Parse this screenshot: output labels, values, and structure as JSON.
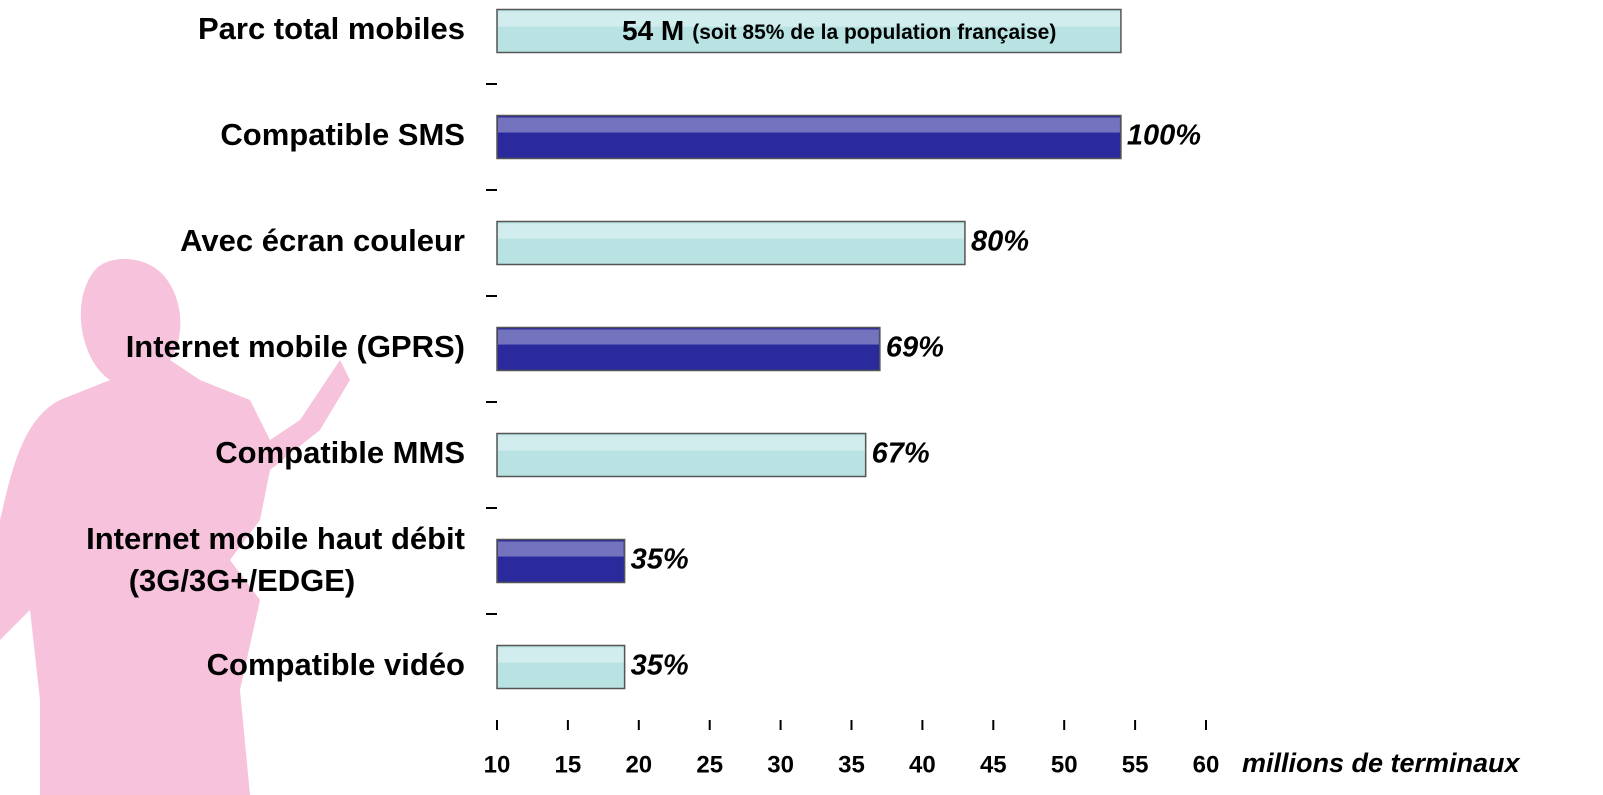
{
  "chart_data": {
    "type": "hbar",
    "categories": [
      "Parc total mobiles",
      "Compatible SMS",
      "Avec écran couleur",
      "Internet mobile (GPRS)",
      "Compatible MMS",
      [
        "Internet mobile haut débit",
        "(3G/3G+/EDGE)"
      ],
      "Compatible vidéo"
    ],
    "values": [
      54,
      54,
      43,
      37,
      36,
      19,
      19
    ],
    "colors": [
      "#b9e3e3",
      "#2a2a9c",
      "#b9e3e3",
      "#2a2a9c",
      "#b9e3e3",
      "#2a2a9c",
      "#b9e3e3"
    ],
    "total_label": "54 M",
    "total_note": "(soit 85% de la population française)",
    "share_labels": [
      null,
      "100%",
      "80%",
      "69%",
      "67%",
      "35%",
      "35%"
    ],
    "xlim": [
      10,
      60
    ],
    "xticks": [
      10,
      15,
      20,
      25,
      30,
      35,
      40,
      45,
      50,
      55,
      60
    ],
    "xlabel": "millions de terminaux"
  }
}
